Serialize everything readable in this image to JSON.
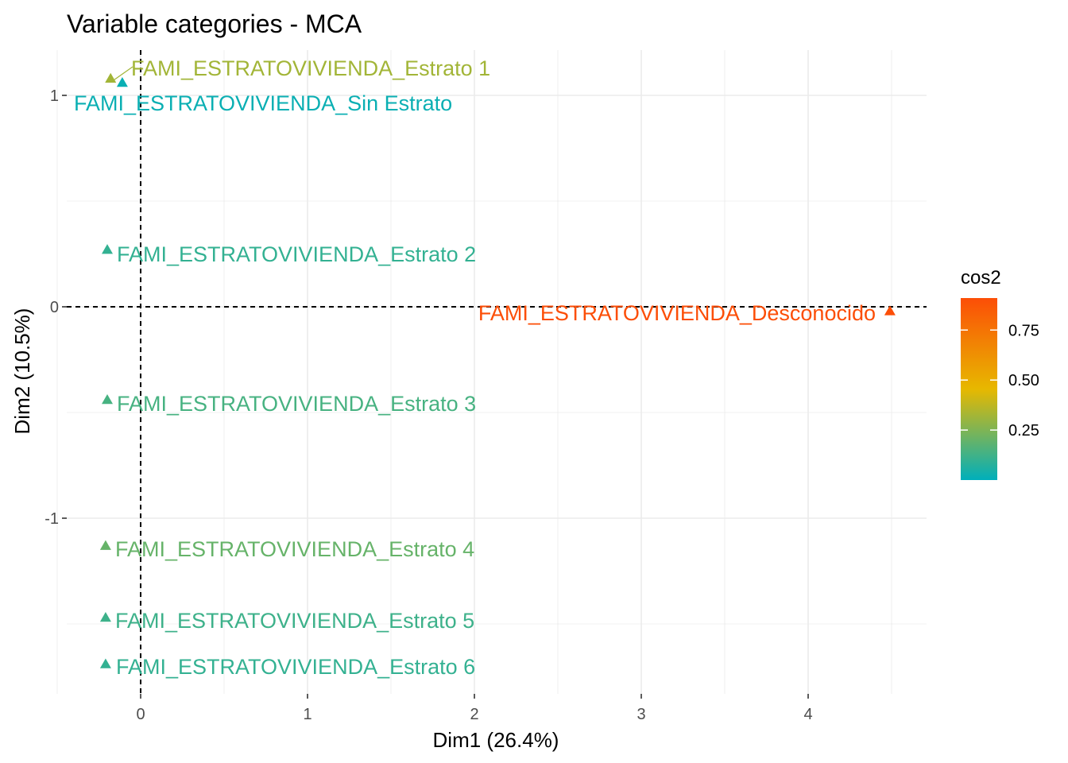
{
  "chart_data": {
    "type": "scatter",
    "title": "Variable categories - MCA",
    "xlabel": "Dim1 (26.4%)",
    "ylabel": "Dim2 (10.5%)",
    "xlim": [
      -0.22,
      4.7
    ],
    "ylim": [
      -1.83,
      1.21
    ],
    "x_ticks": [
      "0",
      "1",
      "2",
      "3",
      "4"
    ],
    "x_tick_values": [
      0,
      1,
      2,
      3,
      4
    ],
    "y_ticks": [
      "-1",
      "0",
      "1"
    ],
    "y_tick_values": [
      -1,
      0,
      1
    ],
    "grid": true,
    "reference_lines": {
      "x": 0,
      "y": 0,
      "style": "dashed"
    },
    "color_scale": {
      "name": "cos2",
      "stops": [
        "#00AFBB",
        "#E7B800",
        "#FC4E07"
      ],
      "min": 0,
      "max": 0.91
    },
    "legend": {
      "title": "cos2",
      "ticks": [
        "0.25",
        "0.50",
        "0.75"
      ],
      "tick_values": [
        0.25,
        0.5,
        0.75
      ],
      "placement": "right"
    },
    "points": [
      {
        "label": "FAMI_ESTRATOVIVIENDA_Estrato 1",
        "x": -0.18,
        "y": 1.08,
        "cos2": 0.32
      },
      {
        "label": "FAMI_ESTRATOVIVIENDA_Sin Estrato",
        "x": -0.11,
        "y": 1.06,
        "cos2": 0.02
      },
      {
        "label": "FAMI_ESTRATOVIVIENDA_Estrato 2",
        "x": -0.2,
        "y": 0.27,
        "cos2": 0.1
      },
      {
        "label": "FAMI_ESTRATOVIVIENDA_Desconocido",
        "x": 4.49,
        "y": -0.02,
        "cos2": 0.91
      },
      {
        "label": "FAMI_ESTRATOVIVIENDA_Estrato 3",
        "x": -0.2,
        "y": -0.44,
        "cos2": 0.14
      },
      {
        "label": "FAMI_ESTRATOVIVIENDA_Estrato 4",
        "x": -0.21,
        "y": -1.13,
        "cos2": 0.2
      },
      {
        "label": "FAMI_ESTRATOVIVIENDA_Estrato 5",
        "x": -0.21,
        "y": -1.47,
        "cos2": 0.12
      },
      {
        "label": "FAMI_ESTRATOVIVIENDA_Estrato 6",
        "x": -0.21,
        "y": -1.69,
        "cos2": 0.1
      }
    ]
  }
}
